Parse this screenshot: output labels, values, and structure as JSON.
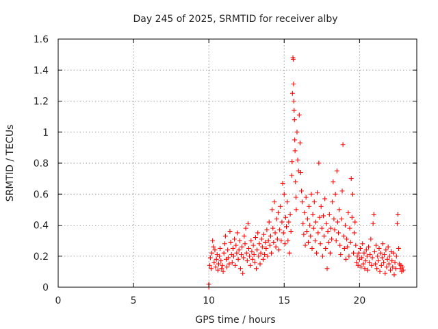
{
  "chart_data": {
    "type": "scatter",
    "title": "Day 245 of 2025, SRMTID for receiver alby",
    "xlabel": "GPS time / hours",
    "ylabel": "SRMTID / TECUs",
    "xlim": [
      0,
      23.8
    ],
    "ylim": [
      0,
      1.6
    ],
    "xticks": [
      0,
      5,
      10,
      15,
      20
    ],
    "xtick_labels": [
      "0",
      "5",
      "10",
      "15",
      "20"
    ],
    "yticks": [
      0,
      0.2,
      0.4,
      0.6,
      0.8,
      1,
      1.2,
      1.4,
      1.6
    ],
    "ytick_labels": [
      "0",
      "0.2",
      "0.4",
      "0.6",
      "0.8",
      "1",
      "1.2",
      "1.4",
      "1.6"
    ],
    "grid": true,
    "marker": "plus",
    "marker_color": "#ff0000",
    "series": [
      {
        "name": "SRMTID",
        "points": [
          [
            10.0,
            0.0
          ],
          [
            10.0,
            0.02
          ],
          [
            10.05,
            0.14
          ],
          [
            10.1,
            0.19
          ],
          [
            10.15,
            0.12
          ],
          [
            10.2,
            0.22
          ],
          [
            10.25,
            0.3
          ],
          [
            10.3,
            0.26
          ],
          [
            10.35,
            0.16
          ],
          [
            10.4,
            0.24
          ],
          [
            10.45,
            0.13
          ],
          [
            10.5,
            0.18
          ],
          [
            10.55,
            0.21
          ],
          [
            10.6,
            0.11
          ],
          [
            10.65,
            0.15
          ],
          [
            10.7,
            0.2
          ],
          [
            10.75,
            0.25
          ],
          [
            10.8,
            0.17
          ],
          [
            10.85,
            0.12
          ],
          [
            10.9,
            0.14
          ],
          [
            10.95,
            0.1
          ],
          [
            11.0,
            0.22
          ],
          [
            11.05,
            0.28
          ],
          [
            11.1,
            0.33
          ],
          [
            11.15,
            0.18
          ],
          [
            11.2,
            0.13
          ],
          [
            11.25,
            0.24
          ],
          [
            11.3,
            0.19
          ],
          [
            11.35,
            0.15
          ],
          [
            11.4,
            0.36
          ],
          [
            11.45,
            0.29
          ],
          [
            11.5,
            0.21
          ],
          [
            11.55,
            0.16
          ],
          [
            11.6,
            0.25
          ],
          [
            11.65,
            0.2
          ],
          [
            11.7,
            0.31
          ],
          [
            11.75,
            0.14
          ],
          [
            11.8,
            0.27
          ],
          [
            11.85,
            0.22
          ],
          [
            11.9,
            0.35
          ],
          [
            11.95,
            0.18
          ],
          [
            12.0,
            0.24
          ],
          [
            12.05,
            0.3
          ],
          [
            12.1,
            0.12
          ],
          [
            12.15,
            0.21
          ],
          [
            12.2,
            0.26
          ],
          [
            12.25,
            0.09
          ],
          [
            12.3,
            0.19
          ],
          [
            12.35,
            0.33
          ],
          [
            12.4,
            0.28
          ],
          [
            12.45,
            0.38
          ],
          [
            12.5,
            0.22
          ],
          [
            12.55,
            0.17
          ],
          [
            12.6,
            0.41
          ],
          [
            12.65,
            0.25
          ],
          [
            12.7,
            0.2
          ],
          [
            12.75,
            0.14
          ],
          [
            12.8,
            0.3
          ],
          [
            12.85,
            0.23
          ],
          [
            12.9,
            0.18
          ],
          [
            12.95,
            0.27
          ],
          [
            13.0,
            0.21
          ],
          [
            13.05,
            0.16
          ],
          [
            13.1,
            0.32
          ],
          [
            13.15,
            0.12
          ],
          [
            13.2,
            0.24
          ],
          [
            13.25,
            0.35
          ],
          [
            13.3,
            0.2
          ],
          [
            13.35,
            0.28
          ],
          [
            13.4,
            0.15
          ],
          [
            13.45,
            0.22
          ],
          [
            13.5,
            0.31
          ],
          [
            13.55,
            0.26
          ],
          [
            13.6,
            0.18
          ],
          [
            13.65,
            0.34
          ],
          [
            13.7,
            0.21
          ],
          [
            13.75,
            0.29
          ],
          [
            13.8,
            0.25
          ],
          [
            13.85,
            0.37
          ],
          [
            13.9,
            0.2
          ],
          [
            13.95,
            0.3
          ],
          [
            14.0,
            0.42
          ],
          [
            14.05,
            0.27
          ],
          [
            14.1,
            0.33
          ],
          [
            14.15,
            0.22
          ],
          [
            14.2,
            0.5
          ],
          [
            14.25,
            0.38
          ],
          [
            14.3,
            0.29
          ],
          [
            14.35,
            0.55
          ],
          [
            14.4,
            0.35
          ],
          [
            14.45,
            0.26
          ],
          [
            14.5,
            0.44
          ],
          [
            14.55,
            0.31
          ],
          [
            14.6,
            0.48
          ],
          [
            14.65,
            0.24
          ],
          [
            14.7,
            0.37
          ],
          [
            14.75,
            0.52
          ],
          [
            14.8,
            0.3
          ],
          [
            14.85,
            0.42
          ],
          [
            14.9,
            0.67
          ],
          [
            14.95,
            0.35
          ],
          [
            15.0,
            0.6
          ],
          [
            15.05,
            0.28
          ],
          [
            15.1,
            0.45
          ],
          [
            15.15,
            0.39
          ],
          [
            15.2,
            0.55
          ],
          [
            15.25,
            0.3
          ],
          [
            15.3,
            0.42
          ],
          [
            15.35,
            0.22
          ],
          [
            15.4,
            0.47
          ],
          [
            15.45,
            0.36
          ],
          [
            15.5,
            0.72
          ],
          [
            15.52,
            0.81
          ],
          [
            15.55,
            1.25
          ],
          [
            15.58,
            1.48
          ],
          [
            15.6,
            1.47
          ],
          [
            15.62,
            1.31
          ],
          [
            15.64,
            1.2
          ],
          [
            15.66,
            1.14
          ],
          [
            15.68,
            1.08
          ],
          [
            15.7,
            0.95
          ],
          [
            15.72,
            0.88
          ],
          [
            15.75,
            0.68
          ],
          [
            15.78,
            0.58
          ],
          [
            15.8,
            0.5
          ],
          [
            15.85,
            1.0
          ],
          [
            15.9,
            0.82
          ],
          [
            15.95,
            0.75
          ],
          [
            16.0,
            1.11
          ],
          [
            16.05,
            0.93
          ],
          [
            16.1,
            0.74
          ],
          [
            16.15,
            0.62
          ],
          [
            16.2,
            0.55
          ],
          [
            16.25,
            0.41
          ],
          [
            16.3,
            0.34
          ],
          [
            16.35,
            0.48
          ],
          [
            16.4,
            0.27
          ],
          [
            16.45,
            0.58
          ],
          [
            16.5,
            0.36
          ],
          [
            16.55,
            0.44
          ],
          [
            16.6,
            0.29
          ],
          [
            16.65,
            0.52
          ],
          [
            16.7,
            0.4
          ],
          [
            16.75,
            0.33
          ],
          [
            16.8,
            0.6
          ],
          [
            16.85,
            0.25
          ],
          [
            16.9,
            0.47
          ],
          [
            16.95,
            0.38
          ],
          [
            17.0,
            0.55
          ],
          [
            17.05,
            0.3
          ],
          [
            17.1,
            0.42
          ],
          [
            17.15,
            0.22
          ],
          [
            17.2,
            0.61
          ],
          [
            17.25,
            0.35
          ],
          [
            17.3,
            0.8
          ],
          [
            17.35,
            0.45
          ],
          [
            17.4,
            0.28
          ],
          [
            17.45,
            0.52
          ],
          [
            17.5,
            0.38
          ],
          [
            17.55,
            0.2
          ],
          [
            17.6,
            0.46
          ],
          [
            17.65,
            0.33
          ],
          [
            17.7,
            0.57
          ],
          [
            17.75,
            0.25
          ],
          [
            17.8,
            0.41
          ],
          [
            17.85,
            0.12
          ],
          [
            17.9,
            0.36
          ],
          [
            17.95,
            0.29
          ],
          [
            18.0,
            0.47
          ],
          [
            18.05,
            0.22
          ],
          [
            18.1,
            0.38
          ],
          [
            18.15,
            0.31
          ],
          [
            18.2,
            0.55
          ],
          [
            18.25,
            0.68
          ],
          [
            18.3,
            0.44
          ],
          [
            18.35,
            0.37
          ],
          [
            18.4,
            0.6
          ],
          [
            18.45,
            0.3
          ],
          [
            18.5,
            0.75
          ],
          [
            18.55,
            0.42
          ],
          [
            18.6,
            0.35
          ],
          [
            18.65,
            0.5
          ],
          [
            18.7,
            0.27
          ],
          [
            18.75,
            0.21
          ],
          [
            18.8,
            0.44
          ],
          [
            18.85,
            0.62
          ],
          [
            18.9,
            0.92
          ],
          [
            18.95,
            0.33
          ],
          [
            19.0,
            0.25
          ],
          [
            19.05,
            0.4
          ],
          [
            19.1,
            0.18
          ],
          [
            19.15,
            0.31
          ],
          [
            19.2,
            0.26
          ],
          [
            19.25,
            0.48
          ],
          [
            19.3,
            0.2
          ],
          [
            19.35,
            0.38
          ],
          [
            19.4,
            0.29
          ],
          [
            19.45,
            0.7
          ],
          [
            19.5,
            0.45
          ],
          [
            19.55,
            0.6
          ],
          [
            19.6,
            0.22
          ],
          [
            19.65,
            0.35
          ],
          [
            19.7,
            0.42
          ],
          [
            19.75,
            0.27
          ],
          [
            19.8,
            0.16
          ],
          [
            19.85,
            0.2
          ],
          [
            19.9,
            0.14
          ],
          [
            19.95,
            0.22
          ],
          [
            20.0,
            0.18
          ],
          [
            20.05,
            0.25
          ],
          [
            20.1,
            0.13
          ],
          [
            20.15,
            0.19
          ],
          [
            20.2,
            0.28
          ],
          [
            20.25,
            0.15
          ],
          [
            20.3,
            0.22
          ],
          [
            20.35,
            0.12
          ],
          [
            20.4,
            0.17
          ],
          [
            20.45,
            0.24
          ],
          [
            20.5,
            0.2
          ],
          [
            20.55,
            0.11
          ],
          [
            20.6,
            0.26
          ],
          [
            20.65,
            0.16
          ],
          [
            20.7,
            0.21
          ],
          [
            20.75,
            0.31
          ],
          [
            20.8,
            0.14
          ],
          [
            20.85,
            0.19
          ],
          [
            20.9,
            0.41
          ],
          [
            20.95,
            0.47
          ],
          [
            21.0,
            0.23
          ],
          [
            21.05,
            0.15
          ],
          [
            21.1,
            0.27
          ],
          [
            21.15,
            0.12
          ],
          [
            21.2,
            0.2
          ],
          [
            21.25,
            0.17
          ],
          [
            21.3,
            0.25
          ],
          [
            21.35,
            0.1
          ],
          [
            21.4,
            0.22
          ],
          [
            21.45,
            0.14
          ],
          [
            21.5,
            0.19
          ],
          [
            21.55,
            0.28
          ],
          [
            21.6,
            0.16
          ],
          [
            21.65,
            0.21
          ],
          [
            21.7,
            0.09
          ],
          [
            21.75,
            0.24
          ],
          [
            21.8,
            0.13
          ],
          [
            21.85,
            0.18
          ],
          [
            21.9,
            0.26
          ],
          [
            21.95,
            0.15
          ],
          [
            22.0,
            0.2
          ],
          [
            22.05,
            0.11
          ],
          [
            22.1,
            0.23
          ],
          [
            22.15,
            0.17
          ],
          [
            22.2,
            0.13
          ],
          [
            22.25,
            0.22
          ],
          [
            22.3,
            0.08
          ],
          [
            22.35,
            0.16
          ],
          [
            22.4,
            0.12
          ],
          [
            22.45,
            0.2
          ],
          [
            22.5,
            0.41
          ],
          [
            22.55,
            0.47
          ],
          [
            22.6,
            0.25
          ],
          [
            22.65,
            0.15
          ],
          [
            22.7,
            0.12
          ],
          [
            22.75,
            0.14
          ],
          [
            22.8,
            0.1
          ],
          [
            22.85,
            0.13
          ],
          [
            22.9,
            0.11
          ]
        ]
      }
    ]
  }
}
